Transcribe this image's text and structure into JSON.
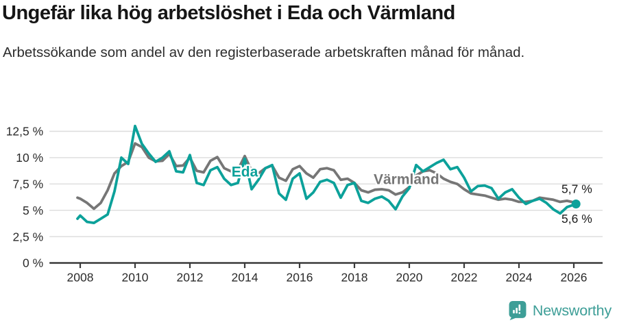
{
  "header": {
    "title": "Ungefär lika hög arbetslöshet i Eda och Värmland",
    "subtitle": "Arbetssökande som andel av den registerbaserade arbetskraften månad för månad."
  },
  "chart_data": {
    "type": "line",
    "title": "Ungefär lika hög arbetslöshet i Eda och Värmland",
    "subtitle": "Arbetssökande som andel av den registerbaserade arbetskraften månad för månad.",
    "xlabel": "",
    "ylabel": "",
    "grid": true,
    "legend_position": "inline-labels",
    "xlim": [
      2006.88,
      2027.05
    ],
    "ylim": [
      0,
      13.6
    ],
    "x": [
      2007.9,
      2008,
      2008.25,
      2008.5,
      2008.75,
      2009,
      2009.25,
      2009.5,
      2009.75,
      2010,
      2010.25,
      2010.5,
      2010.75,
      2011,
      2011.25,
      2011.5,
      2011.75,
      2012,
      2012.25,
      2012.5,
      2012.75,
      2013,
      2013.25,
      2013.5,
      2013.75,
      2014,
      2014.25,
      2014.5,
      2014.75,
      2015,
      2015.25,
      2015.5,
      2015.75,
      2016,
      2016.25,
      2016.5,
      2016.75,
      2017,
      2017.25,
      2017.5,
      2017.75,
      2018,
      2018.25,
      2018.5,
      2018.75,
      2019,
      2019.25,
      2019.5,
      2019.75,
      2020,
      2020.25,
      2020.5,
      2020.75,
      2021,
      2021.25,
      2021.5,
      2021.75,
      2022,
      2022.25,
      2022.5,
      2022.75,
      2023,
      2023.25,
      2023.5,
      2023.75,
      2024,
      2024.25,
      2024.5,
      2024.75,
      2025,
      2025.25,
      2025.5,
      2025.75,
      2026.08
    ],
    "series": [
      {
        "id": "varmland",
        "name": "Värmland",
        "color": "#767676",
        "end_label": "5,7 %",
        "end_dot": false,
        "values": [
          6.2,
          6.1,
          5.7,
          5.15,
          5.7,
          6.9,
          8.5,
          9.2,
          9.6,
          11.35,
          11,
          10,
          9.65,
          9.7,
          10.35,
          9.2,
          9.25,
          10,
          8.75,
          8.6,
          9.7,
          10.05,
          9,
          8.7,
          8.85,
          10.15,
          8.75,
          8.5,
          9,
          9.25,
          8.1,
          7.8,
          8.9,
          9.2,
          8.5,
          8.1,
          8.9,
          9,
          8.8,
          7.9,
          8,
          7.6,
          6.9,
          6.7,
          6.95,
          7,
          6.9,
          6.5,
          6.7,
          7.2,
          8.3,
          8.7,
          8.8,
          8.5,
          8,
          7.7,
          7.5,
          7,
          6.6,
          6.5,
          6.4,
          6.2,
          6,
          6.1,
          6,
          5.8,
          5.8,
          5.9,
          6.2,
          6.1,
          6,
          5.8,
          5.9,
          5.7
        ]
      },
      {
        "id": "eda",
        "name": "Eda",
        "color": "#0ca19a",
        "end_label": "5,6 %",
        "end_dot": true,
        "values": [
          4.2,
          4.5,
          3.9,
          3.8,
          4.2,
          4.6,
          6.8,
          10,
          9.4,
          13,
          11.3,
          10.4,
          9.6,
          10,
          10.6,
          8.7,
          8.6,
          10.25,
          7.6,
          7.4,
          8.8,
          9.1,
          8,
          7.4,
          7.6,
          9.9,
          7,
          7.9,
          9,
          9.3,
          6.6,
          6,
          8,
          8.5,
          6.1,
          6.7,
          7.7,
          7.9,
          7.6,
          6.2,
          7.4,
          7.6,
          5.9,
          5.7,
          6.1,
          6.3,
          5.9,
          5.1,
          6.3,
          7.1,
          9.3,
          8.7,
          9.1,
          9.5,
          9.8,
          8.9,
          9.1,
          8.1,
          6.8,
          7.3,
          7.35,
          7.1,
          6.1,
          6.7,
          7,
          6.2,
          5.6,
          5.9,
          6.1,
          5.7,
          5.1,
          4.7,
          5.3,
          5.6
        ]
      }
    ],
    "y_ticks": [
      {
        "v": 0,
        "label": "0 %"
      },
      {
        "v": 2.5,
        "label": "2,5 %"
      },
      {
        "v": 5,
        "label": "5 %"
      },
      {
        "v": 7.5,
        "label": "7,5 %"
      },
      {
        "v": 10,
        "label": "10 %"
      },
      {
        "v": 12.5,
        "label": "12,5 %"
      }
    ],
    "x_ticks": [
      {
        "v": 2008,
        "label": "2008"
      },
      {
        "v": 2010,
        "label": "2010"
      },
      {
        "v": 2012,
        "label": "2012"
      },
      {
        "v": 2014,
        "label": "2014"
      },
      {
        "v": 2016,
        "label": "2016"
      },
      {
        "v": 2018,
        "label": "2018"
      },
      {
        "v": 2020,
        "label": "2020"
      },
      {
        "v": 2022,
        "label": "2022"
      },
      {
        "v": 2024,
        "label": "2024"
      },
      {
        "v": 2026,
        "label": "2026"
      }
    ],
    "annotations": [
      {
        "id": "eda",
        "text": "Eda",
        "x": 2013.52,
        "y": 8.2,
        "color": "#0ca19a"
      },
      {
        "id": "varmland",
        "text": "Värmland",
        "x": 2018.7,
        "y": 7.5,
        "color": "#767676"
      }
    ],
    "end_value_labels": [
      {
        "id": "varmland-end",
        "text": "5,7 %",
        "x": 2025.55,
        "y": 6.65
      },
      {
        "id": "eda-end",
        "text": "5,6 %",
        "x": 2025.55,
        "y": 3.8
      }
    ],
    "colors": {
      "eda": "#0ca19a",
      "varmland": "#767676",
      "gridline": "#dcdcdc",
      "axis": "#3a3a3a",
      "tick_text": "#2b2b2b",
      "brand": "#3d9e97"
    }
  },
  "footer": {
    "brand": "Newsworthy"
  }
}
